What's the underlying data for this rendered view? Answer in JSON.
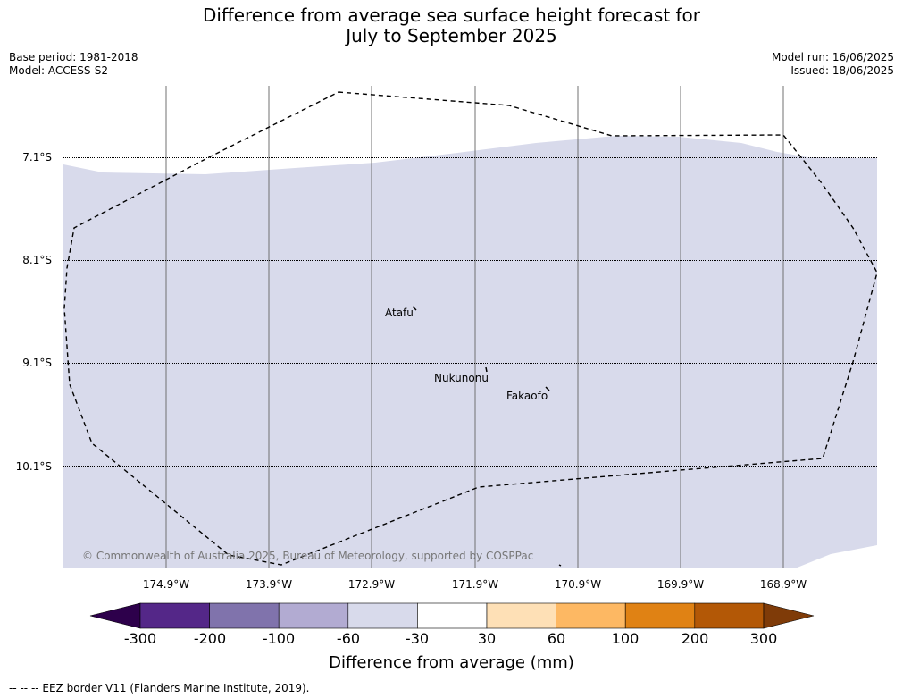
{
  "title_line1": "Difference from average sea surface height forecast for",
  "title_line2": "July to September 2025",
  "meta_left": [
    "Base period: 1981-2018",
    "Model: ACCESS-S2"
  ],
  "meta_right": [
    "Model run: 16/06/2025",
    "Issued: 18/06/2025"
  ],
  "latitudes": [
    "7.1°S",
    "8.1°S",
    "9.1°S",
    "10.1°S"
  ],
  "longitudes": [
    "174.9°W",
    "173.9°W",
    "172.9°W",
    "171.9°W",
    "170.9°W",
    "169.9°W",
    "168.9°W"
  ],
  "islands": [
    {
      "name": "Atafu"
    },
    {
      "name": "Nukunonu"
    },
    {
      "name": "Fakaofo"
    }
  ],
  "copyright": "© Commonwealth of Australia 2025, Bureau of Meteorology, supported by COSPPac",
  "colorbar": {
    "title": "Difference from average (mm)",
    "ticks": [
      "-300",
      "-200",
      "-100",
      "-60",
      "-30",
      "30",
      "60",
      "100",
      "200",
      "300"
    ],
    "colors": {
      "under": "#2d004b",
      "bins": [
        "#542788",
        "#8073ac",
        "#b2abd2",
        "#d8daeb",
        "#ffffff",
        "#fee0b6",
        "#fdb863",
        "#e08214",
        "#b35806"
      ],
      "over": "#7f3b08"
    }
  },
  "map_fill_color": "#d8daeb",
  "footnote": "-- -- -- EEZ border V11 (Flanders Marine Institute, 2019)."
}
